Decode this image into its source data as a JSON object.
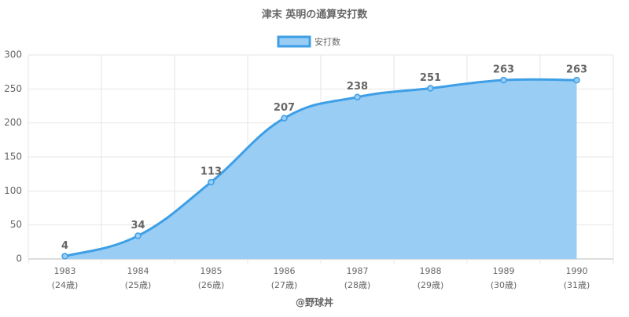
{
  "chart_data": {
    "type": "area",
    "title": "津末 英明の通算安打数",
    "categories": [
      "1983",
      "1984",
      "1985",
      "1986",
      "1987",
      "1988",
      "1989",
      "1990"
    ],
    "age_labels": [
      "(24歳)",
      "(25歳)",
      "(26歳)",
      "(27歳)",
      "(28歳)",
      "(29歳)",
      "(30歳)",
      "(31歳)"
    ],
    "series": [
      {
        "name": "安打数",
        "color": "#3e9fe6",
        "fill": "#99cdf4",
        "values": [
          4,
          34,
          113,
          207,
          238,
          251,
          263,
          263
        ]
      }
    ],
    "ylim": [
      0,
      300
    ],
    "yticks": [
      0,
      50,
      100,
      150,
      200,
      250,
      300
    ],
    "grid": true,
    "footer": "@野球丼"
  }
}
